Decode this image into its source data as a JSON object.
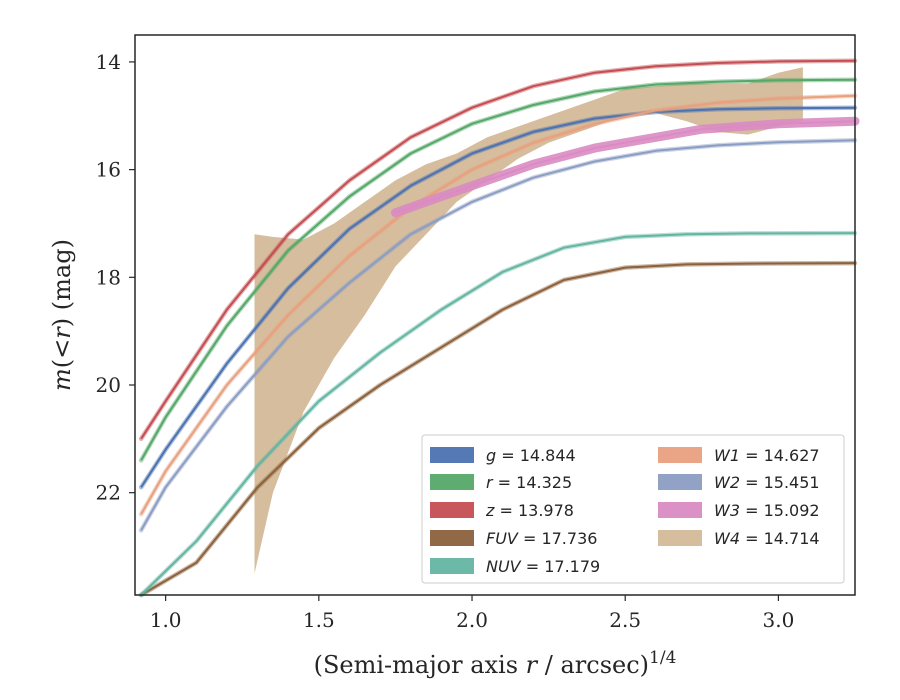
{
  "chart_data": {
    "type": "line",
    "xlabel": "(Semi-major axis r / arcsec)",
    "xlabel_parts": {
      "pre": "(Semi-major axis ",
      "var": "r",
      "post": " / arcsec)",
      "sup": "1/4"
    },
    "ylabel": "m(<r) (mag)",
    "ylabel_parts": {
      "m": "m",
      "open": "(",
      "lt": "<",
      "r": "r",
      "close": ")",
      "unit": " (mag)"
    },
    "xlim": [
      0.9,
      3.25
    ],
    "ylim": [
      23.9,
      13.5
    ],
    "y_inverted": true,
    "x_ticks": [
      1.0,
      1.5,
      2.0,
      2.5,
      3.0
    ],
    "x_tick_labels": [
      "1.0",
      "1.5",
      "2.0",
      "2.5",
      "3.0"
    ],
    "y_ticks": [
      14,
      16,
      18,
      20,
      22
    ],
    "y_tick_labels": [
      "14",
      "16",
      "18",
      "20",
      "22"
    ],
    "legend_position": "lower-right",
    "series": [
      {
        "name": "g",
        "value": "14.844",
        "color": "#4c72b0",
        "kind": "line",
        "x_end": 3.25,
        "points": [
          [
            0.92,
            21.9
          ],
          [
            1.0,
            21.2
          ],
          [
            1.2,
            19.6
          ],
          [
            1.4,
            18.2
          ],
          [
            1.6,
            17.1
          ],
          [
            1.8,
            16.3
          ],
          [
            2.0,
            15.7
          ],
          [
            2.2,
            15.3
          ],
          [
            2.4,
            15.05
          ],
          [
            2.6,
            14.93
          ],
          [
            2.8,
            14.88
          ],
          [
            3.0,
            14.86
          ],
          [
            3.25,
            14.85
          ]
        ]
      },
      {
        "name": "r",
        "value": "14.325",
        "color": "#55a868",
        "kind": "line",
        "x_end": 3.25,
        "points": [
          [
            0.92,
            21.4
          ],
          [
            1.0,
            20.6
          ],
          [
            1.2,
            18.9
          ],
          [
            1.4,
            17.5
          ],
          [
            1.6,
            16.5
          ],
          [
            1.8,
            15.7
          ],
          [
            2.0,
            15.15
          ],
          [
            2.2,
            14.8
          ],
          [
            2.4,
            14.55
          ],
          [
            2.6,
            14.42
          ],
          [
            2.8,
            14.37
          ],
          [
            3.0,
            14.34
          ],
          [
            3.25,
            14.33
          ]
        ]
      },
      {
        "name": "z",
        "value": "13.978",
        "color": "#c44e52",
        "kind": "line",
        "x_end": 3.25,
        "points": [
          [
            0.92,
            21.0
          ],
          [
            1.0,
            20.3
          ],
          [
            1.2,
            18.6
          ],
          [
            1.4,
            17.2
          ],
          [
            1.6,
            16.2
          ],
          [
            1.8,
            15.4
          ],
          [
            2.0,
            14.85
          ],
          [
            2.2,
            14.45
          ],
          [
            2.4,
            14.2
          ],
          [
            2.6,
            14.08
          ],
          [
            2.8,
            14.02
          ],
          [
            3.0,
            13.99
          ],
          [
            3.25,
            13.98
          ]
        ]
      },
      {
        "name": "FUV",
        "value": "17.736",
        "color": "#8c613c",
        "kind": "line",
        "x_end": 3.25,
        "points": [
          [
            0.92,
            23.9
          ],
          [
            1.1,
            23.3
          ],
          [
            1.3,
            21.9
          ],
          [
            1.5,
            20.8
          ],
          [
            1.7,
            20.0
          ],
          [
            1.9,
            19.3
          ],
          [
            2.1,
            18.6
          ],
          [
            2.3,
            18.05
          ],
          [
            2.5,
            17.82
          ],
          [
            2.7,
            17.76
          ],
          [
            2.9,
            17.745
          ],
          [
            3.25,
            17.736
          ]
        ]
      },
      {
        "name": "NUV",
        "value": "17.179",
        "color": "#64b5a2",
        "kind": "line",
        "x_end": 3.25,
        "points": [
          [
            0.92,
            23.9
          ],
          [
            1.1,
            22.9
          ],
          [
            1.3,
            21.5
          ],
          [
            1.5,
            20.3
          ],
          [
            1.7,
            19.4
          ],
          [
            1.9,
            18.6
          ],
          [
            2.1,
            17.9
          ],
          [
            2.3,
            17.45
          ],
          [
            2.5,
            17.25
          ],
          [
            2.7,
            17.2
          ],
          [
            2.9,
            17.185
          ],
          [
            3.25,
            17.179
          ]
        ]
      },
      {
        "name": "W1",
        "value": "14.627",
        "color": "#e8a07e",
        "kind": "line",
        "x_end": 3.25,
        "points": [
          [
            0.92,
            22.4
          ],
          [
            1.0,
            21.6
          ],
          [
            1.2,
            20.0
          ],
          [
            1.4,
            18.7
          ],
          [
            1.6,
            17.6
          ],
          [
            1.8,
            16.7
          ],
          [
            2.0,
            16.0
          ],
          [
            2.2,
            15.5
          ],
          [
            2.4,
            15.15
          ],
          [
            2.6,
            14.9
          ],
          [
            2.8,
            14.76
          ],
          [
            3.0,
            14.68
          ],
          [
            3.25,
            14.63
          ]
        ]
      },
      {
        "name": "W2",
        "value": "15.451",
        "color": "#8c9dc4",
        "kind": "line",
        "x_end": 3.25,
        "points": [
          [
            0.92,
            22.7
          ],
          [
            1.0,
            21.9
          ],
          [
            1.2,
            20.4
          ],
          [
            1.4,
            19.1
          ],
          [
            1.6,
            18.1
          ],
          [
            1.8,
            17.2
          ],
          [
            2.0,
            16.6
          ],
          [
            2.2,
            16.15
          ],
          [
            2.4,
            15.85
          ],
          [
            2.6,
            15.65
          ],
          [
            2.8,
            15.55
          ],
          [
            3.0,
            15.49
          ],
          [
            3.25,
            15.455
          ]
        ]
      },
      {
        "name": "W3",
        "value": "15.092",
        "color": "#da8bc3",
        "kind": "line",
        "x_end": 3.25,
        "points": [
          [
            1.75,
            16.8
          ],
          [
            1.9,
            16.5
          ],
          [
            2.0,
            16.3
          ],
          [
            2.1,
            16.1
          ],
          [
            2.2,
            15.9
          ],
          [
            2.3,
            15.75
          ],
          [
            2.4,
            15.6
          ],
          [
            2.5,
            15.5
          ],
          [
            2.6,
            15.4
          ],
          [
            2.75,
            15.25
          ],
          [
            3.0,
            15.15
          ],
          [
            3.25,
            15.1
          ]
        ]
      },
      {
        "name": "W4",
        "value": "14.714",
        "color": "#ccad85",
        "kind": "band",
        "x_end": 3.08,
        "band_upper": [
          [
            1.29,
            17.2
          ],
          [
            1.35,
            17.25
          ],
          [
            1.45,
            17.3
          ],
          [
            1.55,
            17.0
          ],
          [
            1.65,
            16.6
          ],
          [
            1.75,
            16.2
          ],
          [
            1.85,
            15.9
          ],
          [
            1.95,
            15.7
          ],
          [
            2.05,
            15.4
          ],
          [
            2.15,
            15.2
          ],
          [
            2.25,
            15.0
          ],
          [
            2.4,
            14.7
          ],
          [
            2.5,
            14.5
          ],
          [
            2.6,
            14.45
          ],
          [
            2.7,
            14.4
          ],
          [
            2.8,
            14.4
          ],
          [
            2.9,
            14.4
          ],
          [
            3.0,
            14.2
          ],
          [
            3.08,
            14.1
          ]
        ],
        "band_lower": [
          [
            1.29,
            23.5
          ],
          [
            1.35,
            22.0
          ],
          [
            1.45,
            20.5
          ],
          [
            1.55,
            19.5
          ],
          [
            1.65,
            18.7
          ],
          [
            1.75,
            17.8
          ],
          [
            1.85,
            17.2
          ],
          [
            1.95,
            16.6
          ],
          [
            2.05,
            16.2
          ],
          [
            2.15,
            15.8
          ],
          [
            2.25,
            15.5
          ],
          [
            2.4,
            15.2
          ],
          [
            2.5,
            15.0
          ],
          [
            2.6,
            14.95
          ],
          [
            2.7,
            15.1
          ],
          [
            2.8,
            15.3
          ],
          [
            2.9,
            15.35
          ],
          [
            3.0,
            15.2
          ],
          [
            3.08,
            15.1
          ]
        ]
      }
    ]
  }
}
